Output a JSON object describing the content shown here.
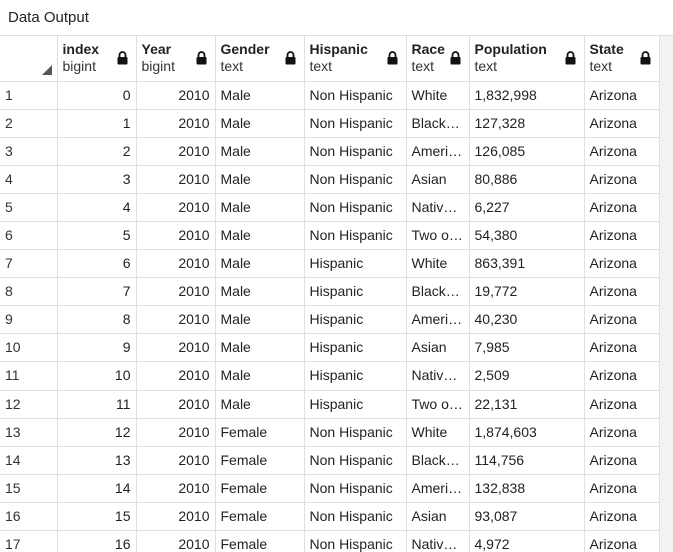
{
  "panel": {
    "title": "Data Output"
  },
  "columns": [
    {
      "name": "index",
      "type": "bigint"
    },
    {
      "name": "Year",
      "type": "bigint"
    },
    {
      "name": "Gender",
      "type": "text"
    },
    {
      "name": "Hispanic",
      "type": "text"
    },
    {
      "name": "Race",
      "type": "text"
    },
    {
      "name": "Population",
      "type": "text"
    },
    {
      "name": "State",
      "type": "text"
    }
  ],
  "rows": [
    {
      "n": "1",
      "index": "0",
      "year": "2010",
      "gender": "Male",
      "hispanic": "Non Hispanic",
      "race": "White",
      "population": "1,832,998",
      "state": "Arizona"
    },
    {
      "n": "2",
      "index": "1",
      "year": "2010",
      "gender": "Male",
      "hispanic": "Non Hispanic",
      "race": "Black o…",
      "population": "127,328",
      "state": "Arizona"
    },
    {
      "n": "3",
      "index": "2",
      "year": "2010",
      "gender": "Male",
      "hispanic": "Non Hispanic",
      "race": "Americ…",
      "population": "126,085",
      "state": "Arizona"
    },
    {
      "n": "4",
      "index": "3",
      "year": "2010",
      "gender": "Male",
      "hispanic": "Non Hispanic",
      "race": "Asian",
      "population": "80,886",
      "state": "Arizona"
    },
    {
      "n": "5",
      "index": "4",
      "year": "2010",
      "gender": "Male",
      "hispanic": "Non Hispanic",
      "race": "Native …",
      "population": "6,227",
      "state": "Arizona"
    },
    {
      "n": "6",
      "index": "5",
      "year": "2010",
      "gender": "Male",
      "hispanic": "Non Hispanic",
      "race": "Two or …",
      "population": "54,380",
      "state": "Arizona"
    },
    {
      "n": "7",
      "index": "6",
      "year": "2010",
      "gender": "Male",
      "hispanic": "Hispanic",
      "race": "White",
      "population": "863,391",
      "state": "Arizona"
    },
    {
      "n": "8",
      "index": "7",
      "year": "2010",
      "gender": "Male",
      "hispanic": "Hispanic",
      "race": "Black o…",
      "population": "19,772",
      "state": "Arizona"
    },
    {
      "n": "9",
      "index": "8",
      "year": "2010",
      "gender": "Male",
      "hispanic": "Hispanic",
      "race": "Americ…",
      "population": "40,230",
      "state": "Arizona"
    },
    {
      "n": "10",
      "index": "9",
      "year": "2010",
      "gender": "Male",
      "hispanic": "Hispanic",
      "race": "Asian",
      "population": "7,985",
      "state": "Arizona"
    },
    {
      "n": "11",
      "index": "10",
      "year": "2010",
      "gender": "Male",
      "hispanic": "Hispanic",
      "race": "Native …",
      "population": "2,509",
      "state": "Arizona"
    },
    {
      "n": "12",
      "index": "11",
      "year": "2010",
      "gender": "Male",
      "hispanic": "Hispanic",
      "race": "Two or …",
      "population": "22,131",
      "state": "Arizona"
    },
    {
      "n": "13",
      "index": "12",
      "year": "2010",
      "gender": "Female",
      "hispanic": "Non Hispanic",
      "race": "White",
      "population": "1,874,603",
      "state": "Arizona"
    },
    {
      "n": "14",
      "index": "13",
      "year": "2010",
      "gender": "Female",
      "hispanic": "Non Hispanic",
      "race": "Black o…",
      "population": "114,756",
      "state": "Arizona"
    },
    {
      "n": "15",
      "index": "14",
      "year": "2010",
      "gender": "Female",
      "hispanic": "Non Hispanic",
      "race": "Americ…",
      "population": "132,838",
      "state": "Arizona"
    },
    {
      "n": "16",
      "index": "15",
      "year": "2010",
      "gender": "Female",
      "hispanic": "Non Hispanic",
      "race": "Asian",
      "population": "93,087",
      "state": "Arizona"
    },
    {
      "n": "17",
      "index": "16",
      "year": "2010",
      "gender": "Female",
      "hispanic": "Non Hispanic",
      "race": "Native …",
      "population": "4,972",
      "state": "Arizona"
    }
  ],
  "icons": {
    "column_lock": "lock-icon",
    "sort_corner": "corner-triangle-icon"
  },
  "colors": {
    "grid_line": "#dde0e6",
    "text": "#222222"
  }
}
